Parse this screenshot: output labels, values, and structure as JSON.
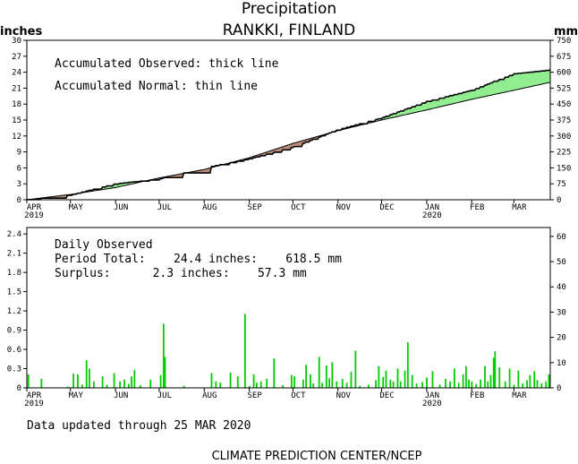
{
  "header": {
    "title": "Precipitation",
    "subtitle": "RANKKI, FINLAND",
    "left_unit": "inches",
    "right_unit": "mm"
  },
  "footer": {
    "updated": "Data updated through 25 MAR 2020",
    "credit": "CLIMATE PREDICTION CENTER/NCEP"
  },
  "colors": {
    "surplus": "#90ee90",
    "deficit": "#b88c78",
    "daily_bar": "#00cc00",
    "line": "#000000"
  },
  "chart_data": [
    {
      "type": "area",
      "legend": [
        "Accumulated Observed: thick line",
        "Accumulated Normal: thin line"
      ],
      "x_tick_labels": [
        "APR",
        "MAY",
        "JUN",
        "JUL",
        "AUG",
        "SEP",
        "OCT",
        "NOV",
        "DEC",
        "JAN",
        "FEB",
        "MAR"
      ],
      "x_year_labels": [
        {
          "month": "APR",
          "year": "2019"
        },
        {
          "month": "JAN",
          "year": "2020"
        }
      ],
      "y_left": {
        "label": "inches",
        "ticks": [
          "0",
          "3",
          "6",
          "9",
          "12",
          "15",
          "18",
          "21",
          "24",
          "27",
          "30"
        ],
        "lim": [
          0,
          30
        ]
      },
      "y_right": {
        "label": "mm",
        "ticks": [
          "0",
          "75",
          "150",
          "225",
          "300",
          "375",
          "450",
          "525",
          "600",
          "675",
          "750"
        ],
        "lim": [
          0,
          750
        ]
      },
      "x_days": [
        0,
        30,
        61,
        91,
        122,
        153,
        183,
        214,
        244,
        275,
        306,
        335,
        360
      ],
      "observed": [
        0.0,
        0.9,
        3.0,
        3.9,
        6.0,
        7.7,
        9.9,
        13.2,
        15.4,
        18.5,
        20.6,
        23.7,
        24.4
      ],
      "normal": [
        0.0,
        1.0,
        2.3,
        4.1,
        5.7,
        7.9,
        10.6,
        13.0,
        15.0,
        16.9,
        18.9,
        20.6,
        22.1
      ]
    },
    {
      "type": "bar",
      "legend": [
        "Daily Observed",
        "Period Total:    24.4 inches:    618.5 mm",
        "Surplus:      2.3 inches:    57.3 mm"
      ],
      "y_left": {
        "ticks": [
          "0",
          "0.3",
          "0.6",
          "0.9",
          "1.2",
          "1.5",
          "1.8",
          "2.1",
          "2.4"
        ],
        "lim": [
          0,
          2.5
        ]
      },
      "y_right": {
        "ticks": [
          "0",
          "10",
          "20",
          "30",
          "40",
          "50",
          "60"
        ],
        "lim": [
          0,
          63.5
        ]
      },
      "x_tick_labels": [
        "APR",
        "MAY",
        "JUN",
        "JUL",
        "AUG",
        "SEP",
        "OCT",
        "NOV",
        "DEC",
        "JAN",
        "FEB",
        "MAR"
      ],
      "x_year_labels": [
        {
          "month": "APR",
          "year": "2019"
        },
        {
          "month": "JAN",
          "year": "2020"
        }
      ],
      "daily": [
        {
          "day": 1,
          "value": 0.21
        },
        {
          "day": 10,
          "value": 0.14
        },
        {
          "day": 28,
          "value": 0.02
        },
        {
          "day": 32,
          "value": 0.22
        },
        {
          "day": 35,
          "value": 0.21
        },
        {
          "day": 38,
          "value": 0.05
        },
        {
          "day": 41,
          "value": 0.43
        },
        {
          "day": 43,
          "value": 0.3
        },
        {
          "day": 46,
          "value": 0.1
        },
        {
          "day": 52,
          "value": 0.18
        },
        {
          "day": 55,
          "value": 0.05
        },
        {
          "day": 60,
          "value": 0.23
        },
        {
          "day": 64,
          "value": 0.1
        },
        {
          "day": 67,
          "value": 0.13
        },
        {
          "day": 70,
          "value": 0.06
        },
        {
          "day": 72,
          "value": 0.18
        },
        {
          "day": 74,
          "value": 0.28
        },
        {
          "day": 78,
          "value": 0.04
        },
        {
          "day": 85,
          "value": 0.13
        },
        {
          "day": 92,
          "value": 0.2
        },
        {
          "day": 94,
          "value": 1.0
        },
        {
          "day": 95,
          "value": 0.48
        },
        {
          "day": 108,
          "value": 0.03
        },
        {
          "day": 127,
          "value": 0.23
        },
        {
          "day": 130,
          "value": 0.1
        },
        {
          "day": 133,
          "value": 0.08
        },
        {
          "day": 140,
          "value": 0.24
        },
        {
          "day": 145,
          "value": 0.18
        },
        {
          "day": 150,
          "value": 1.15
        },
        {
          "day": 153,
          "value": 0.03
        },
        {
          "day": 156,
          "value": 0.21
        },
        {
          "day": 158,
          "value": 0.08
        },
        {
          "day": 161,
          "value": 0.1
        },
        {
          "day": 165,
          "value": 0.14
        },
        {
          "day": 170,
          "value": 0.46
        },
        {
          "day": 176,
          "value": 0.04
        },
        {
          "day": 182,
          "value": 0.2
        },
        {
          "day": 184,
          "value": 0.18
        },
        {
          "day": 190,
          "value": 0.13
        },
        {
          "day": 192,
          "value": 0.36
        },
        {
          "day": 195,
          "value": 0.21
        },
        {
          "day": 197,
          "value": 0.07
        },
        {
          "day": 201,
          "value": 0.48
        },
        {
          "day": 203,
          "value": 0.08
        },
        {
          "day": 206,
          "value": 0.35
        },
        {
          "day": 208,
          "value": 0.15
        },
        {
          "day": 210,
          "value": 0.4
        },
        {
          "day": 213,
          "value": 0.1
        },
        {
          "day": 217,
          "value": 0.14
        },
        {
          "day": 220,
          "value": 0.08
        },
        {
          "day": 223,
          "value": 0.25
        },
        {
          "day": 226,
          "value": 0.58
        },
        {
          "day": 229,
          "value": 0.03
        },
        {
          "day": 235,
          "value": 0.05
        },
        {
          "day": 240,
          "value": 0.12
        },
        {
          "day": 242,
          "value": 0.34
        },
        {
          "day": 245,
          "value": 0.17
        },
        {
          "day": 247,
          "value": 0.27
        },
        {
          "day": 250,
          "value": 0.13
        },
        {
          "day": 252,
          "value": 0.1
        },
        {
          "day": 255,
          "value": 0.3
        },
        {
          "day": 257,
          "value": 0.1
        },
        {
          "day": 260,
          "value": 0.27
        },
        {
          "day": 262,
          "value": 0.71
        },
        {
          "day": 265,
          "value": 0.2
        },
        {
          "day": 268,
          "value": 0.07
        },
        {
          "day": 272,
          "value": 0.09
        },
        {
          "day": 275,
          "value": 0.16
        },
        {
          "day": 279,
          "value": 0.26
        },
        {
          "day": 284,
          "value": 0.05
        },
        {
          "day": 288,
          "value": 0.14
        },
        {
          "day": 291,
          "value": 0.1
        },
        {
          "day": 294,
          "value": 0.3
        },
        {
          "day": 297,
          "value": 0.08
        },
        {
          "day": 300,
          "value": 0.21
        },
        {
          "day": 302,
          "value": 0.34
        },
        {
          "day": 304,
          "value": 0.13
        },
        {
          "day": 306,
          "value": 0.1
        },
        {
          "day": 309,
          "value": 0.06
        },
        {
          "day": 312,
          "value": 0.13
        },
        {
          "day": 315,
          "value": 0.34
        },
        {
          "day": 317,
          "value": 0.1
        },
        {
          "day": 319,
          "value": 0.2
        },
        {
          "day": 321,
          "value": 0.47
        },
        {
          "day": 322,
          "value": 0.57
        },
        {
          "day": 325,
          "value": 0.32
        },
        {
          "day": 329,
          "value": 0.1
        },
        {
          "day": 332,
          "value": 0.3
        },
        {
          "day": 335,
          "value": 0.05
        },
        {
          "day": 338,
          "value": 0.27
        },
        {
          "day": 341,
          "value": 0.07
        },
        {
          "day": 344,
          "value": 0.12
        },
        {
          "day": 346,
          "value": 0.2
        },
        {
          "day": 349,
          "value": 0.26
        },
        {
          "day": 351,
          "value": 0.12
        },
        {
          "day": 354,
          "value": 0.07
        },
        {
          "day": 357,
          "value": 0.1
        },
        {
          "day": 359,
          "value": 0.21
        }
      ]
    }
  ]
}
